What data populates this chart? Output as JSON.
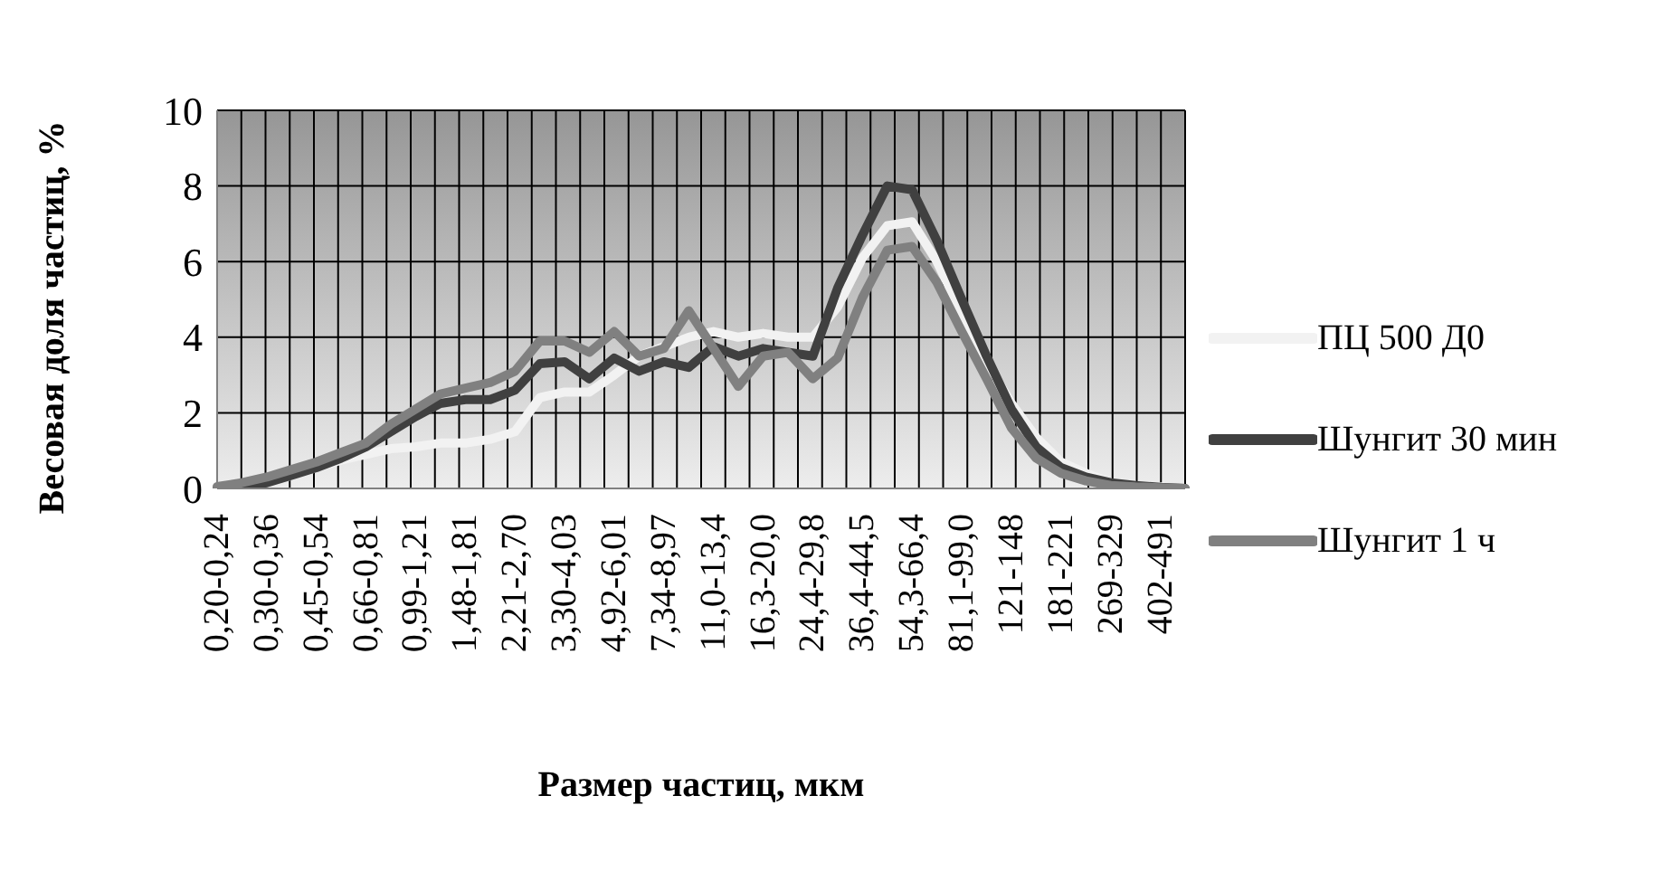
{
  "chart_data": {
    "type": "line",
    "xlabel": "Размер частиц, мкм",
    "ylabel": "Весовая доля частиц, %",
    "categories": [
      "0,20-0,24",
      null,
      "0,30-0,36",
      null,
      "0,45-0,54",
      null,
      "0,66-0,81",
      null,
      "0,99-1,21",
      null,
      "1,48-1,81",
      null,
      "2,21-2,70",
      null,
      "3,30-4,03",
      null,
      "4,92-6,01",
      null,
      "7,34-8,97",
      null,
      "11,0-13,4",
      null,
      "16,3-20,0",
      null,
      "24,4-29,8",
      null,
      "36,4-44,5",
      null,
      "54,3-66,4",
      null,
      "81,1-99,0",
      null,
      "121-148",
      null,
      "181-221",
      null,
      "269-329",
      null,
      "402-491",
      null
    ],
    "series": [
      {
        "name": "ПЦ 500 Д0",
        "color": "#f2f2f2",
        "values": [
          0,
          0.05,
          0.15,
          0.35,
          0.55,
          0.75,
          0.9,
          1.05,
          1.1,
          1.2,
          1.2,
          1.3,
          1.5,
          2.4,
          2.55,
          2.55,
          3.0,
          3.5,
          3.75,
          4.0,
          4.15,
          4.0,
          4.1,
          4.0,
          4.0,
          4.8,
          6.1,
          6.95,
          7.05,
          6.0,
          4.65,
          3.35,
          2.25,
          1.35,
          0.7,
          0.4,
          0.15,
          0.08,
          0.04,
          0
        ]
      },
      {
        "name": "Шунгит 30 мин",
        "color": "#404040",
        "values": [
          0,
          0.05,
          0.15,
          0.35,
          0.55,
          0.8,
          1.1,
          1.5,
          1.9,
          2.25,
          2.35,
          2.35,
          2.6,
          3.3,
          3.35,
          2.9,
          3.45,
          3.1,
          3.35,
          3.2,
          3.75,
          3.5,
          3.7,
          3.6,
          3.5,
          5.3,
          6.7,
          8.0,
          7.9,
          6.55,
          5.0,
          3.5,
          2.1,
          1.1,
          0.55,
          0.3,
          0.15,
          0.08,
          0.03,
          0
        ]
      },
      {
        "name": "Шунгит 1 ч",
        "color": "#808080",
        "values": [
          0.05,
          0.15,
          0.3,
          0.5,
          0.7,
          0.95,
          1.2,
          1.7,
          2.1,
          2.5,
          2.65,
          2.8,
          3.1,
          3.9,
          3.9,
          3.6,
          4.15,
          3.5,
          3.7,
          4.7,
          3.7,
          2.7,
          3.5,
          3.6,
          2.9,
          3.45,
          5.05,
          6.3,
          6.4,
          5.45,
          4.15,
          2.9,
          1.6,
          0.8,
          0.4,
          0.2,
          0.08,
          0.04,
          0.02,
          0
        ]
      }
    ],
    "ylim": [
      0,
      10
    ],
    "yticks": [
      0,
      2,
      4,
      6,
      8,
      10
    ],
    "grid": true,
    "legend": "right",
    "marker": "none",
    "line_style": "solid"
  }
}
